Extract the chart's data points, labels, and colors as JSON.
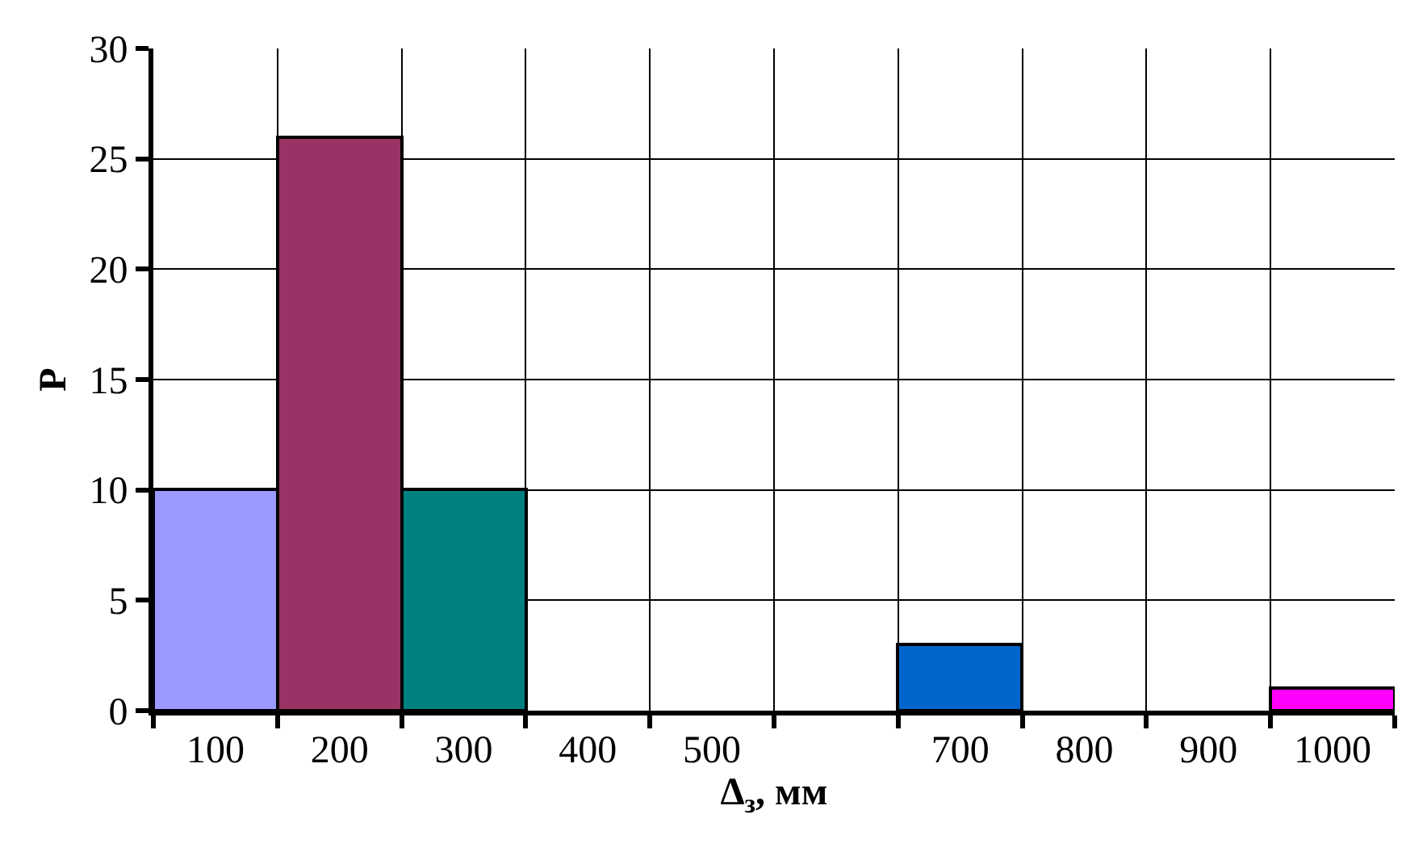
{
  "chart_data": {
    "type": "bar",
    "categories": [
      "100",
      "200",
      "300",
      "400",
      "500",
      null,
      "700",
      "800",
      "900",
      "1000"
    ],
    "values": [
      10,
      26,
      10,
      0,
      0,
      0,
      3,
      0,
      0,
      1
    ],
    "colors": [
      "#9999ff",
      "#993366",
      "#008080",
      null,
      null,
      null,
      "#0066cc",
      null,
      null,
      "#ff00ff"
    ],
    "ylabel": "Р",
    "xlabel": "Δ$_{з}$, мм",
    "ylim": [
      0,
      30
    ],
    "yticks": [
      0,
      5,
      10,
      15,
      20,
      25,
      30
    ],
    "grid": true
  }
}
